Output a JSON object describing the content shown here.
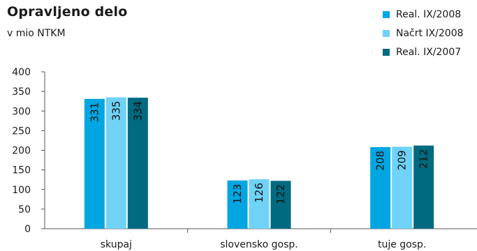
{
  "chart_data": {
    "type": "bar",
    "title": "Opravljeno delo",
    "subtitle": "v mio NTKM",
    "categories": [
      "skupaj",
      "slovensko gosp.",
      "tuje gosp."
    ],
    "series": [
      {
        "name": "Real. IX/2008",
        "values": [
          331,
          123,
          208
        ],
        "color": "#00a6e2"
      },
      {
        "name": "Načrt IX/2008",
        "values": [
          335,
          126,
          209
        ],
        "color": "#6fd2f6"
      },
      {
        "name": "Real. IX/2007",
        "values": [
          334,
          122,
          212
        ],
        "color": "#006a80"
      }
    ],
    "ylim": [
      0,
      400
    ],
    "yticks": [
      0,
      50,
      100,
      150,
      200,
      250,
      300,
      350,
      400
    ],
    "legend_position": "top-right",
    "grid": false
  }
}
